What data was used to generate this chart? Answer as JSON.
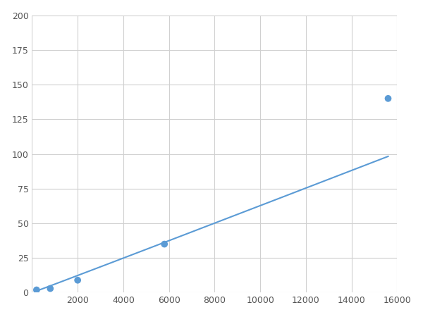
{
  "x": [
    200,
    800,
    2000,
    5800,
    15600
  ],
  "y": [
    2,
    3,
    9,
    35,
    140
  ],
  "line_color": "#5b9bd5",
  "marker_color": "#5b9bd5",
  "marker_size": 7,
  "line_width": 1.5,
  "xlim": [
    0,
    16000
  ],
  "ylim": [
    0,
    200
  ],
  "xticks": [
    0,
    2000,
    4000,
    6000,
    8000,
    10000,
    12000,
    14000,
    16000
  ],
  "yticks": [
    0,
    25,
    50,
    75,
    100,
    125,
    150,
    175,
    200
  ],
  "background_color": "#ffffff",
  "grid_color": "#d0d0d0"
}
